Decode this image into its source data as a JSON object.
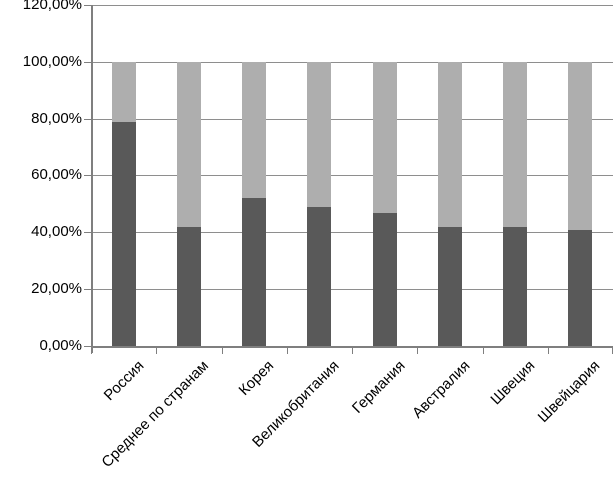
{
  "chart_data": {
    "type": "bar",
    "stacked": true,
    "title": "",
    "xlabel": "",
    "ylabel": "",
    "categories": [
      "Россия",
      "Среднее по странам",
      "Корея",
      "Великобритания",
      "Германия",
      "Австралия",
      "Швеция",
      "Швейцария"
    ],
    "series": [
      {
        "name": "lower-dark-segment",
        "color": "#595959",
        "values": [
          79,
          42,
          52,
          49,
          47,
          42,
          42,
          41
        ]
      },
      {
        "name": "upper-light-segment",
        "color": "#aeaeae",
        "values": [
          21,
          58,
          48,
          51,
          53,
          58,
          58,
          59
        ]
      }
    ],
    "value_unit": "%",
    "bar_total": 100,
    "y_axis": {
      "min": 0,
      "max": 120,
      "step": 20,
      "tick_labels": [
        "0,00%",
        "20,00%",
        "40,00%",
        "60,00%",
        "80,00%",
        "100,00%",
        "120,00%"
      ]
    },
    "grid": true,
    "legend": "none",
    "gridline_color": "#8e8e8e",
    "axis_color": "#7f7f7f",
    "background_color": "#ffffff",
    "text_color": "#000000"
  }
}
